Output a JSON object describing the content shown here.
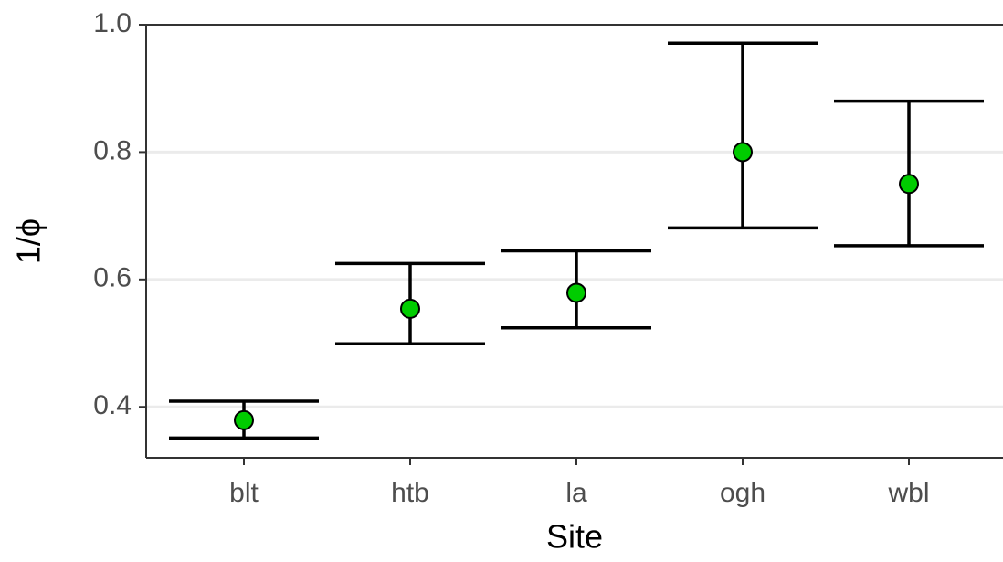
{
  "chart_data": {
    "type": "errorbar",
    "x_label": "Site",
    "y_label": "1/ϕ",
    "categories": [
      "blt",
      "htb",
      "la",
      "ogh",
      "wbl"
    ],
    "values": [
      0.379,
      0.554,
      0.579,
      0.8,
      0.75
    ],
    "lower": [
      0.351,
      0.499,
      0.524,
      0.681,
      0.653
    ],
    "upper": [
      0.409,
      0.625,
      0.645,
      0.971,
      0.88
    ],
    "color": "#00cc00",
    "ylim": [
      0.32,
      1.0
    ],
    "yticks": [
      0.4,
      0.6,
      0.8,
      {
        "value": 1.0,
        "label": "1.0"
      }
    ],
    "grid": true
  }
}
